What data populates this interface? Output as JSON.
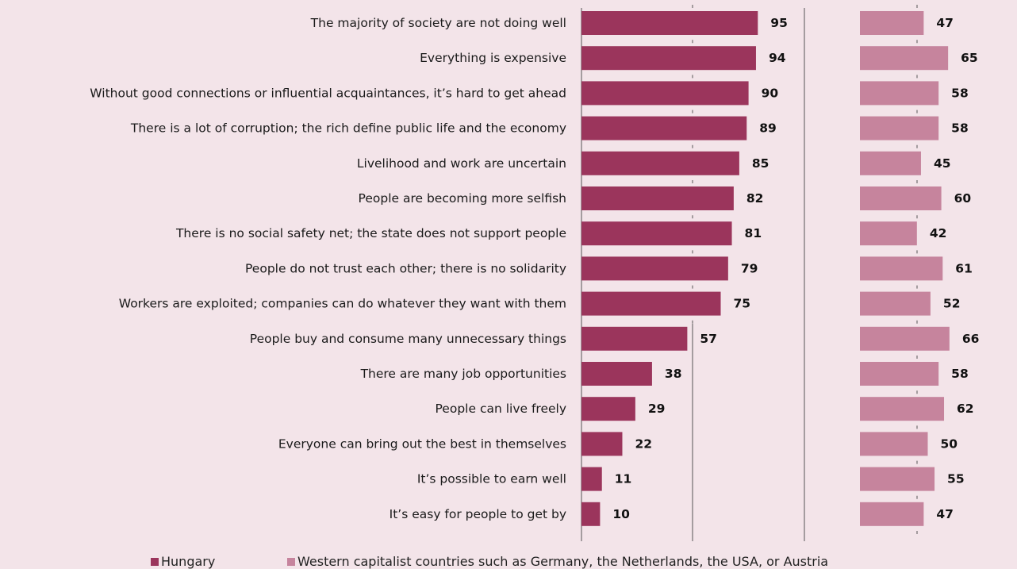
{
  "colors": {
    "hungary": "#9b355c",
    "western": "#c6849d",
    "axis": "#555555",
    "background": "#f3e4e9"
  },
  "legend": {
    "hungary": "Hungary",
    "western": "Western capitalist countries such as Germany, the Netherlands, the USA, or Austria"
  },
  "chart_data": {
    "type": "bar",
    "orientation": "horizontal",
    "categories": [
      "The majority of society are not doing well",
      "Everything is expensive",
      "Without good connections or influential acquaintances, it’s hard to get ahead",
      "There is a lot of corruption; the rich define public life and the economy",
      "Livelihood and work are uncertain",
      "People are becoming more selfish",
      "There is no social safety net; the state does not support people",
      "People do not trust each other; there is no solidarity",
      "Workers are exploited; companies can do whatever they want with them",
      "People buy and consume many unnecessary things",
      "There are many job opportunities",
      "People can live freely",
      "Everyone can bring out the best in themselves",
      "It’s possible to earn well",
      "It’s easy for people to get by"
    ],
    "series": [
      {
        "name": "Hungary",
        "values": [
          95,
          94,
          90,
          89,
          85,
          82,
          81,
          79,
          75,
          57,
          38,
          29,
          22,
          11,
          10
        ]
      },
      {
        "name": "Western capitalist countries such as Germany, the Netherlands, the USA, or Austria",
        "values": [
          47,
          65,
          58,
          58,
          45,
          60,
          42,
          61,
          52,
          66,
          58,
          62,
          50,
          55,
          47
        ]
      }
    ],
    "xlim": [
      0,
      100
    ],
    "legend_position": "bottom",
    "grid": false
  }
}
